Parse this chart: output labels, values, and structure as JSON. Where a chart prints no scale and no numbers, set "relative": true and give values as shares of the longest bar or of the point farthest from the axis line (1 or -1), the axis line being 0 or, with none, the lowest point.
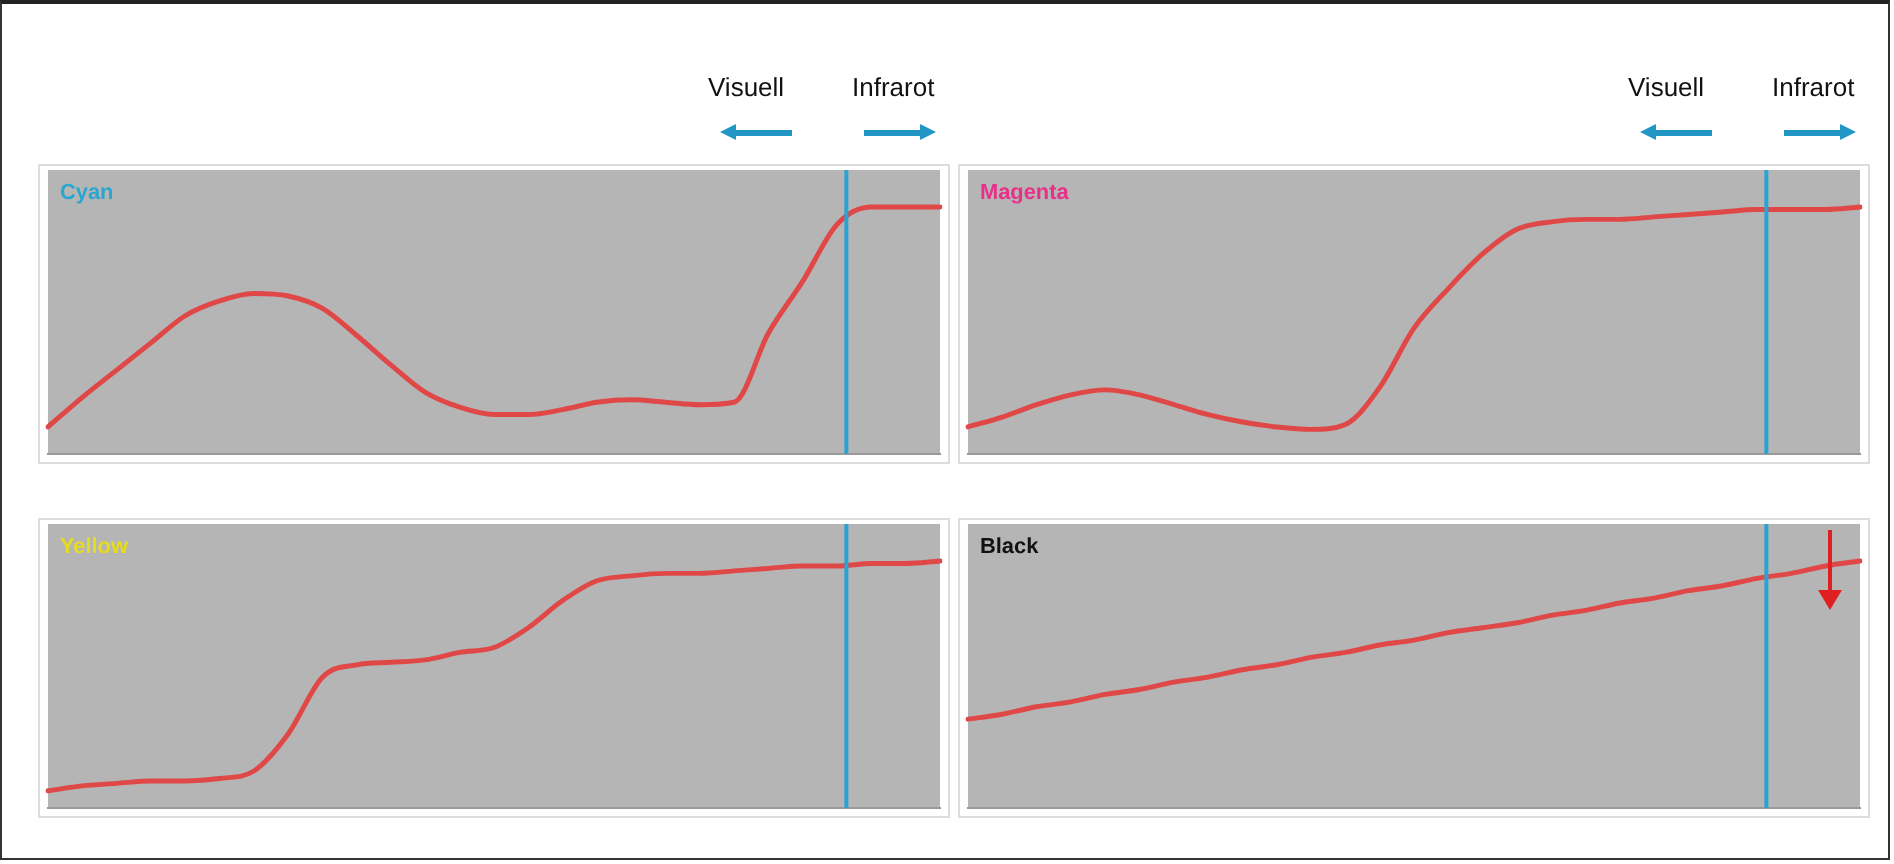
{
  "chart_data": [
    {
      "type": "line",
      "title": "Cyan",
      "relative": true,
      "categories": [
        null,
        null,
        null,
        null,
        null,
        null,
        null,
        null,
        null,
        null,
        null,
        null,
        null,
        null,
        null,
        null,
        null,
        null,
        null,
        null,
        null,
        null,
        null,
        null,
        null,
        null,
        null
      ],
      "annotations": [
        "Visuell",
        "Infrarot"
      ],
      "legend": false,
      "grid": false,
      "marker": "none",
      "series": [
        {
          "color": "#e04848",
          "values": [
            0.11,
            0.23,
            0.34,
            0.45,
            0.56,
            0.62,
            0.65,
            0.64,
            0.59,
            0.48,
            0.36,
            0.25,
            0.19,
            0.16,
            0.16,
            0.18,
            0.21,
            0.22,
            0.21,
            0.2,
            0.21,
            0.49,
            0.7,
            0.93,
            1,
            1,
            1
          ]
        }
      ]
    },
    {
      "type": "line",
      "title": "Magenta",
      "relative": true,
      "categories": [
        null,
        null,
        null,
        null,
        null,
        null,
        null,
        null,
        null,
        null,
        null,
        null,
        null,
        null,
        null,
        null,
        null,
        null,
        null,
        null,
        null,
        null,
        null,
        null,
        null,
        null,
        null
      ],
      "annotations": [
        "Visuell",
        "Infrarot"
      ],
      "legend": false,
      "grid": false,
      "marker": "none",
      "series": [
        {
          "color": "#e04848",
          "values": [
            0.11,
            0.15,
            0.2,
            0.24,
            0.26,
            0.24,
            0.2,
            0.16,
            0.13,
            0.11,
            0.1,
            0.12,
            0.27,
            0.51,
            0.67,
            0.81,
            0.91,
            0.94,
            0.95,
            0.95,
            0.96,
            0.97,
            0.98,
            0.99,
            0.99,
            0.99,
            1
          ]
        }
      ]
    },
    {
      "type": "line",
      "title": "Yellow",
      "relative": true,
      "categories": [
        null,
        null,
        null,
        null,
        null,
        null,
        null,
        null,
        null,
        null,
        null,
        null,
        null,
        null,
        null,
        null,
        null,
        null,
        null,
        null,
        null,
        null,
        null,
        null,
        null,
        null,
        null
      ],
      "legend": false,
      "grid": false,
      "marker": "none",
      "series": [
        {
          "color": "#e04848",
          "values": [
            0.07,
            0.09,
            0.1,
            0.11,
            0.11,
            0.12,
            0.15,
            0.3,
            0.53,
            0.58,
            0.59,
            0.6,
            0.63,
            0.65,
            0.73,
            0.84,
            0.92,
            0.94,
            0.95,
            0.95,
            0.96,
            0.97,
            0.98,
            0.98,
            0.99,
            0.99,
            1
          ]
        }
      ]
    },
    {
      "type": "line",
      "title": "Black",
      "relative": true,
      "categories": [
        null,
        null,
        null,
        null,
        null,
        null,
        null,
        null,
        null,
        null,
        null,
        null,
        null,
        null,
        null,
        null,
        null,
        null,
        null,
        null,
        null,
        null,
        null,
        null,
        null,
        null,
        null
      ],
      "legend": false,
      "grid": false,
      "marker": "none",
      "series": [
        {
          "color": "#e04848",
          "values": [
            0.36,
            0.38,
            0.41,
            0.43,
            0.46,
            0.48,
            0.51,
            0.53,
            0.56,
            0.58,
            0.61,
            0.63,
            0.66,
            0.68,
            0.71,
            0.73,
            0.75,
            0.78,
            0.8,
            0.83,
            0.85,
            0.88,
            0.9,
            0.93,
            0.95,
            0.98,
            1
          ]
        }
      ]
    }
  ]
}
